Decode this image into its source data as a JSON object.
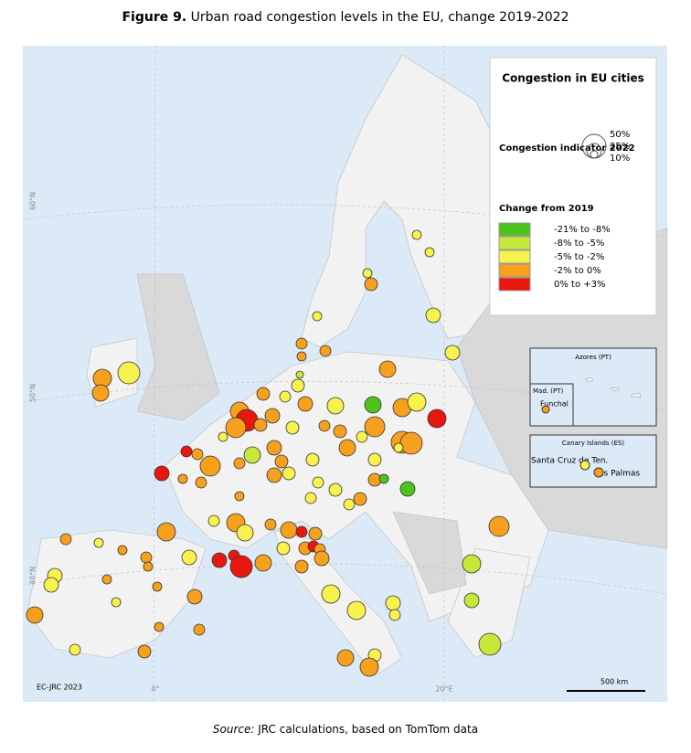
{
  "header": {
    "figure": "Figure 9.",
    "title": "Urban road congestion levels in the EU, change 2019-2022"
  },
  "legend": {
    "title": "Congestion in EU cities",
    "size_title": "Congestion indicator 2022",
    "sizes": [
      "50%",
      "25%",
      "10%"
    ],
    "change_title": "Change from 2019",
    "classes": [
      {
        "label": "-21%  to -8%",
        "color": "#4cc41c"
      },
      {
        "label": "-8% to -5%",
        "color": "#c6e83a"
      },
      {
        "label": "-5% to -2%",
        "color": "#f7f24e"
      },
      {
        "label": "-2% to 0%",
        "color": "#f7a01e"
      },
      {
        "label": "0% to +3%",
        "color": "#e8180e"
      }
    ]
  },
  "insets": {
    "azores": "Azores (PT)",
    "madeira": "Mad. (PT)",
    "funchal": "Funchal",
    "canary": "Canary Islands (ES)",
    "santa_cruz": "Santa Cruz de Ten.",
    "las_palmas": "Las Palmas"
  },
  "graticule": [
    "60°N",
    "50°N",
    "40°N",
    "0°",
    "20°E"
  ],
  "credit": "EC-JRC 2023",
  "scale": "500 km",
  "source": {
    "prefix": "Source:",
    "text": "JRC calculations, based on TomTom data"
  }
}
